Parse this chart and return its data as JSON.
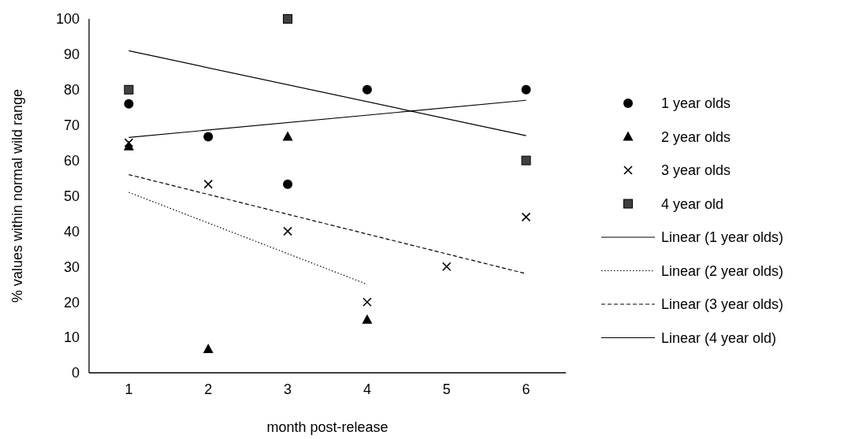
{
  "chart_data": {
    "type": "scatter",
    "xlabel": "month post-release",
    "ylabel": "% values within normal wild range",
    "xlim": [
      0.5,
      6.5
    ],
    "xticks": [
      1,
      2,
      3,
      4,
      5,
      6
    ],
    "ylim": [
      0,
      100
    ],
    "yticks": [
      0,
      10,
      20,
      30,
      40,
      50,
      60,
      70,
      80,
      90,
      100
    ],
    "grid": false,
    "legend": "right",
    "series": [
      {
        "name": "1 year olds",
        "marker": "circle",
        "color": "#000000",
        "x": [
          1,
          2,
          3,
          4,
          6
        ],
        "values": [
          76,
          66.7,
          53.3,
          80,
          80
        ]
      },
      {
        "name": "2 year olds",
        "marker": "triangle",
        "color": "#000000",
        "x": [
          1,
          2,
          3,
          4
        ],
        "values": [
          64,
          6.7,
          66.7,
          15
        ]
      },
      {
        "name": "3 year olds",
        "marker": "cross",
        "color": "#000000",
        "x": [
          1,
          2,
          3,
          4,
          5,
          6
        ],
        "values": [
          65,
          53.3,
          40,
          20,
          30,
          44
        ]
      },
      {
        "name": "4 year old",
        "marker": "square",
        "color": "#404040",
        "x": [
          1,
          3,
          6
        ],
        "values": [
          80,
          100,
          60
        ]
      },
      {
        "name": "Linear (1 year olds)",
        "type": "line",
        "marker": "none",
        "line_style": "solid",
        "color": "#000000",
        "x": [
          1,
          6
        ],
        "values": [
          66.5,
          77
        ]
      },
      {
        "name": "Linear (2 year olds)",
        "type": "line",
        "marker": "none",
        "line_style": "dotted",
        "color": "#000000",
        "x": [
          1,
          4
        ],
        "values": [
          51,
          25
        ]
      },
      {
        "name": "Linear (3 year olds)",
        "type": "line",
        "marker": "none",
        "line_style": "dashed",
        "color": "#000000",
        "x": [
          1,
          6
        ],
        "values": [
          56,
          28
        ]
      },
      {
        "name": "Linear (4 year old)",
        "type": "line",
        "marker": "none",
        "line_style": "solid",
        "color": "#000000",
        "x": [
          1,
          6
        ],
        "values": [
          91,
          67
        ]
      }
    ]
  }
}
